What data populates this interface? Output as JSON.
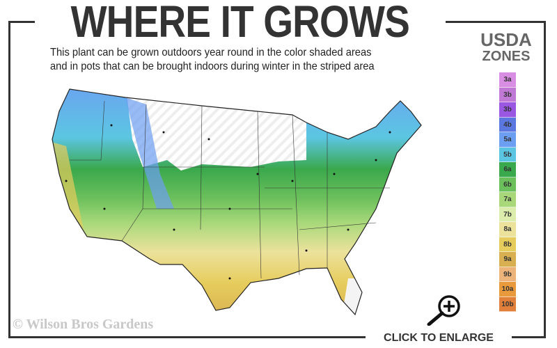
{
  "header": {
    "title": "WHERE IT GROWS",
    "subtitle_lines": [
      "This plant can be grown outdoors year round in the color shaded areas",
      "and in pots that can be brought indoors during winter in the striped area"
    ]
  },
  "legend": {
    "title_line1": "USDA",
    "title_line2": "ZONES",
    "zones": [
      {
        "label": "3a",
        "color": "#d88ee2"
      },
      {
        "label": "3b",
        "color": "#c07ad6"
      },
      {
        "label": "3b",
        "color": "#9a58e2"
      },
      {
        "label": "4b",
        "color": "#5a78e0"
      },
      {
        "label": "5a",
        "color": "#6c9ef2"
      },
      {
        "label": "5b",
        "color": "#5cc6e2"
      },
      {
        "label": "6a",
        "color": "#3aa84c"
      },
      {
        "label": "6b",
        "color": "#6cc05c"
      },
      {
        "label": "7a",
        "color": "#a8d87a"
      },
      {
        "label": "7b",
        "color": "#dcecac"
      },
      {
        "label": "8a",
        "color": "#ece29c"
      },
      {
        "label": "8b",
        "color": "#e6cc5c"
      },
      {
        "label": "9a",
        "color": "#d8b052"
      },
      {
        "label": "9b",
        "color": "#ecb47a"
      },
      {
        "label": "10a",
        "color": "#e89a3c"
      },
      {
        "label": "10b",
        "color": "#e0803a"
      }
    ]
  },
  "footer": {
    "copyright": "© Wilson Bros Gardens",
    "enlarge_label": "CLICK TO ENLARGE",
    "enlarge_icon": "zoom-in-icon"
  }
}
